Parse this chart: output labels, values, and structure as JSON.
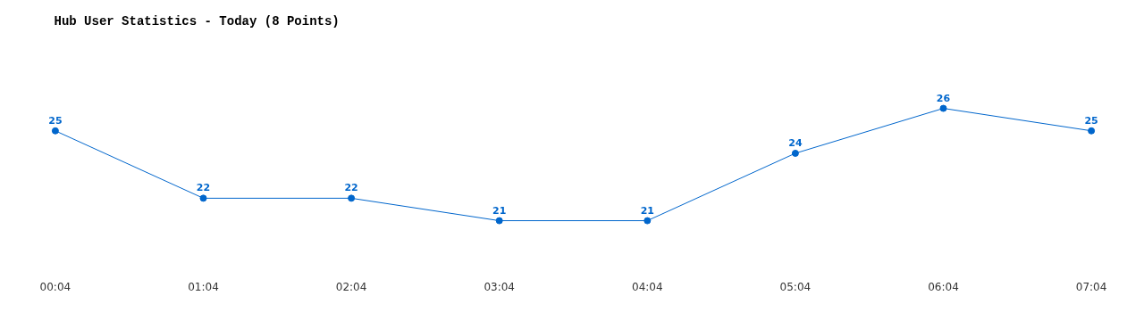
{
  "chart_data": {
    "type": "line",
    "title": "Hub User Statistics - Today (8 Points)",
    "categories": [
      "00:04",
      "01:04",
      "02:04",
      "03:04",
      "04:04",
      "05:04",
      "06:04",
      "07:04"
    ],
    "series": [
      {
        "color": "#0066cc",
        "values": [
          25,
          22,
          22,
          21,
          21,
          24,
          26,
          25
        ]
      }
    ],
    "data_labels": true,
    "marker": "circle"
  }
}
